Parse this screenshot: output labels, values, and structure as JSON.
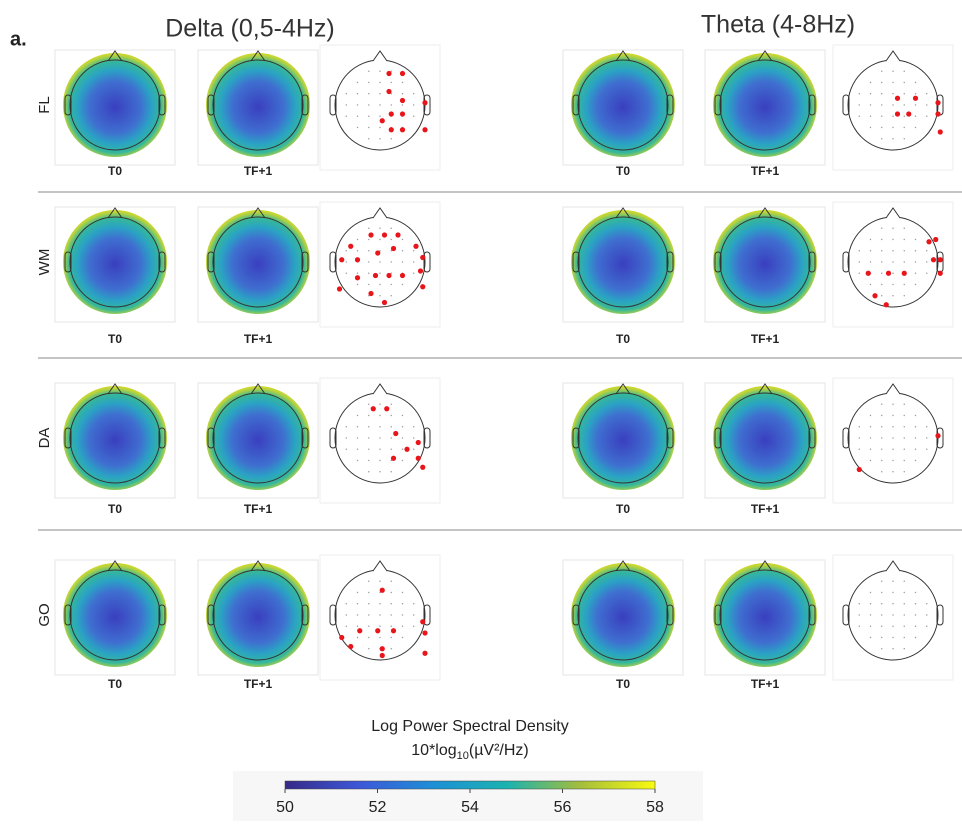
{
  "panel_label": "a.",
  "bands": [
    {
      "title": "Delta (0,5-4Hz)"
    },
    {
      "title": "Theta (4-8Hz)"
    }
  ],
  "conditions": [
    {
      "label": "FL",
      "map_labels": [
        "T0",
        "TF+1",
        "T0",
        "TF+1"
      ]
    },
    {
      "label": "WM",
      "map_labels": [
        "T0",
        "TF+1",
        "T0",
        "TF+1"
      ]
    },
    {
      "label": "DA",
      "map_labels": [
        "T0",
        "TF+1",
        "T0",
        "TF+1"
      ]
    },
    {
      "label": "GO",
      "map_labels": [
        "T0",
        "TF+1",
        "T0",
        "TF+1"
      ]
    }
  ],
  "colorbar": {
    "title": "Log Power Spectral Density",
    "unit_prefix": "10*log",
    "unit_sub": "10",
    "unit_suffix": "(µV²/Hz)",
    "lim": [
      50,
      58
    ],
    "ticks": [
      50,
      52,
      54,
      56,
      58
    ]
  }
}
